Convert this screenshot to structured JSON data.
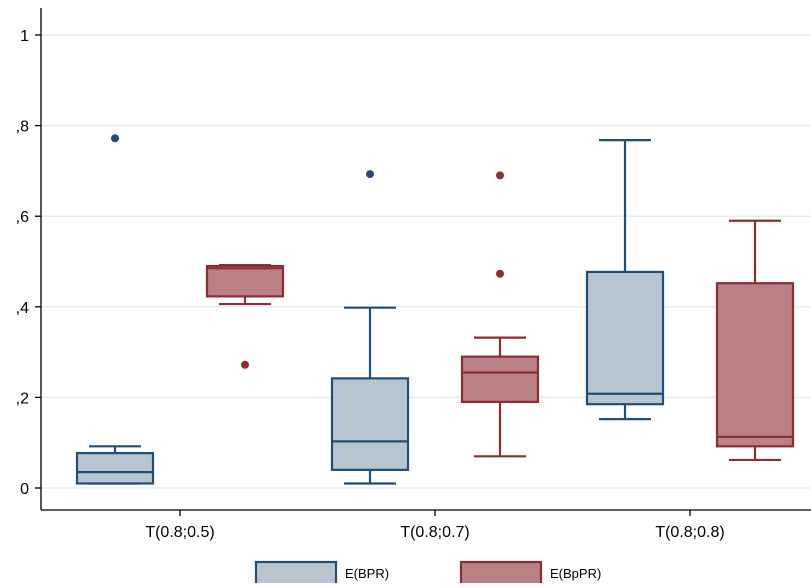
{
  "chart_data": {
    "type": "box",
    "title": "",
    "xlabel": "",
    "ylabel": "",
    "ylim": [
      0,
      1
    ],
    "grid": true,
    "legend_position": "bottom",
    "y_ticks": [
      {
        "value": 0,
        "label": "0"
      },
      {
        "value": 0.2,
        "label": ",2"
      },
      {
        "value": 0.4,
        "label": ",4"
      },
      {
        "value": 0.6,
        "label": ",6"
      },
      {
        "value": 0.8,
        "label": ",8"
      },
      {
        "value": 1,
        "label": "1"
      }
    ],
    "categories": [
      "T(0.8;0.5)",
      "T(0.8;0.7)",
      "T(0.8;0.8)"
    ],
    "series": [
      {
        "name": "E(BPR)",
        "fill": "#b8c5d0",
        "stroke": "#1f4e79",
        "boxes": [
          {
            "whisker_low": 0.01,
            "q1": 0.01,
            "median": 0.035,
            "q3": 0.077,
            "whisker_high": 0.092,
            "outliers": [
              0.772
            ]
          },
          {
            "whisker_low": 0.01,
            "q1": 0.04,
            "median": 0.103,
            "q3": 0.242,
            "whisker_high": 0.398,
            "outliers": [
              0.693
            ]
          },
          {
            "whisker_low": 0.152,
            "q1": 0.185,
            "median": 0.208,
            "q3": 0.477,
            "whisker_high": 0.768,
            "outliers": []
          }
        ]
      },
      {
        "name": "E(BpPR)",
        "fill": "#b98185",
        "stroke": "#8b2e33",
        "boxes": [
          {
            "whisker_low": 0.406,
            "q1": 0.423,
            "median": 0.485,
            "q3": 0.49,
            "whisker_high": 0.492,
            "outliers": [
              0.272
            ]
          },
          {
            "whisker_low": 0.07,
            "q1": 0.19,
            "median": 0.255,
            "q3": 0.29,
            "whisker_high": 0.332,
            "outliers": [
              0.473,
              0.69
            ]
          },
          {
            "whisker_low": 0.062,
            "q1": 0.092,
            "median": 0.113,
            "q3": 0.452,
            "whisker_high": 0.59,
            "outliers": []
          }
        ]
      }
    ]
  },
  "colors": {
    "background": "#ffffff",
    "gridline": "#e3ecef",
    "axis": "#000000"
  }
}
